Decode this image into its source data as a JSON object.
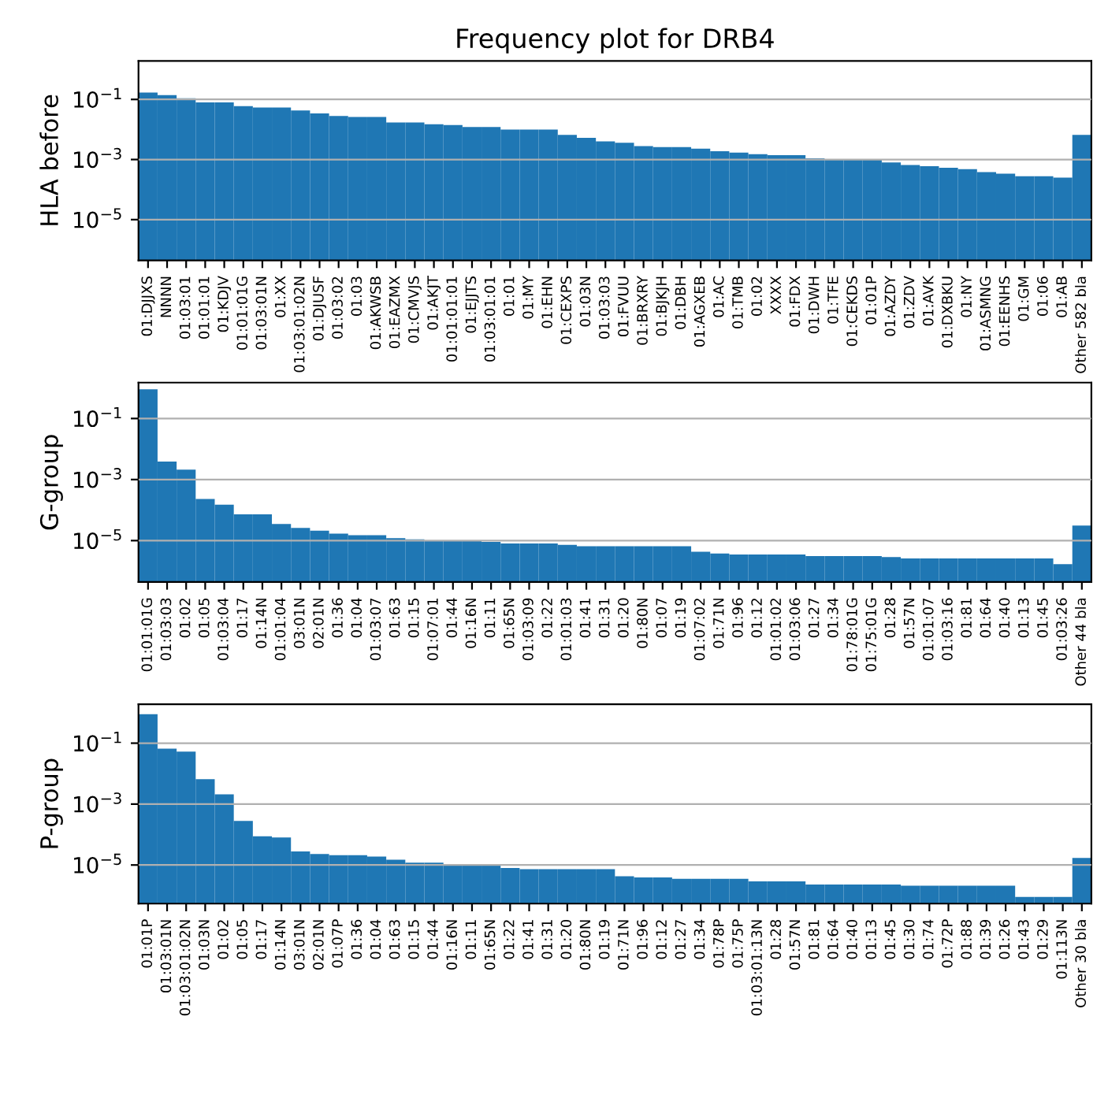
{
  "chart_data": [
    {
      "type": "bar",
      "title": "Frequency plot for DRB4",
      "ylabel": "HLA before",
      "log": "y",
      "grid": "y",
      "color": "#1f77b4",
      "categories": [
        "01:DJJXS",
        "NNNN",
        "01:03:01",
        "01:01:01",
        "01:KDJV",
        "01:01:01G",
        "01:03:01N",
        "01:XX",
        "01:03:01:02N",
        "01:DJUSF",
        "01:03:02",
        "01:03",
        "01:AKWSB",
        "01:EAZMX",
        "01:CMVJS",
        "01:AKJT",
        "01:01:01:01",
        "01:EJJTS",
        "01:03:01:01",
        "01:01",
        "01:MY",
        "01:EHN",
        "01:CEXPS",
        "01:03N",
        "01:03:03",
        "01:FVUU",
        "01:BRXRY",
        "01:BJKJH",
        "01:DBH",
        "01:AGXEB",
        "01:AC",
        "01:TMB",
        "01:02",
        "XXXX",
        "01:FDX",
        "01:DWH",
        "01:TFE",
        "01:CEKDS",
        "01:01P",
        "01:AZDY",
        "01:ZDV",
        "01:AVK",
        "01:DXBKU",
        "01:NY",
        "01:ASMNG",
        "01:EENHS",
        "01:GM",
        "01:06",
        "01:AB",
        "Other 582 bla"
      ],
      "values": [
        0.17,
        0.14,
        0.11,
        0.08,
        0.08,
        0.06,
        0.054,
        0.054,
        0.043,
        0.034,
        0.028,
        0.026,
        0.026,
        0.017,
        0.017,
        0.015,
        0.014,
        0.012,
        0.012,
        0.01,
        0.01,
        0.01,
        0.0066,
        0.0053,
        0.004,
        0.0036,
        0.0028,
        0.0026,
        0.0026,
        0.0023,
        0.0019,
        0.0017,
        0.0015,
        0.0014,
        0.0014,
        0.0011,
        0.001,
        0.001,
        0.001,
        0.0008,
        0.00066,
        0.0006,
        0.00053,
        0.00048,
        0.00038,
        0.00034,
        0.00028,
        0.00028,
        0.00025,
        0.0066
      ],
      "ylim": [
        4.4e-07,
        1.9
      ],
      "yticks": [
        {
          "value": 1e-05,
          "label": "10$^{−5}$"
        },
        {
          "value": 0.001,
          "label": "10$^{−3}$"
        },
        {
          "value": 0.1,
          "label": "10$^{−1}$"
        }
      ]
    },
    {
      "type": "bar",
      "ylabel": "G-group",
      "log": "y",
      "grid": "y",
      "color": "#1f77b4",
      "categories": [
        "01:01:01G",
        "01:03:03",
        "01:02",
        "01:05",
        "01:03:04",
        "01:17",
        "01:14N",
        "01:01:04",
        "03:01N",
        "02:01N",
        "01:36",
        "01:04",
        "01:03:07",
        "01:63",
        "01:15",
        "01:07:01",
        "01:44",
        "01:16N",
        "01:11",
        "01:65N",
        "01:03:09",
        "01:22",
        "01:01:03",
        "01:41",
        "01:31",
        "01:20",
        "01:80N",
        "01:07",
        "01:19",
        "01:07:02",
        "01:71N",
        "01:96",
        "01:12",
        "01:01:02",
        "01:03:06",
        "01:27",
        "01:34",
        "01:78:01G",
        "01:75:01G",
        "01:28",
        "01:57N",
        "01:01:07",
        "01:03:16",
        "01:81",
        "01:64",
        "01:40",
        "01:13",
        "01:45",
        "01:03:26",
        "Other 44 bla"
      ],
      "values": [
        0.9,
        0.0039,
        0.0021,
        0.00023,
        0.00015,
        7.3e-05,
        7.3e-05,
        3.5e-05,
        2.6e-05,
        2.1e-05,
        1.7e-05,
        1.5e-05,
        1.5e-05,
        1.2e-05,
        1.1e-05,
        1e-05,
        1e-05,
        1e-05,
        9e-06,
        8e-06,
        8e-06,
        8e-06,
        7.3e-06,
        6.5e-06,
        6.5e-06,
        6.5e-06,
        6.5e-06,
        6.5e-06,
        6.5e-06,
        4.3e-06,
        3.8e-06,
        3.5e-06,
        3.5e-06,
        3.5e-06,
        3.5e-06,
        3.1e-06,
        3.1e-06,
        3.1e-06,
        3.1e-06,
        2.9e-06,
        2.6e-06,
        2.6e-06,
        2.6e-06,
        2.6e-06,
        2.6e-06,
        2.6e-06,
        2.6e-06,
        2.6e-06,
        1.7e-06,
        3.1e-05
      ],
      "ylim": [
        4.4e-07,
        1.5
      ],
      "yticks": [
        {
          "value": 1e-05,
          "label": "10$^{−5}$"
        },
        {
          "value": 0.001,
          "label": "10$^{−3}$"
        },
        {
          "value": 0.1,
          "label": "10$^{−1}$"
        }
      ]
    },
    {
      "type": "bar",
      "ylabel": "P-group",
      "log": "y",
      "grid": "y",
      "color": "#1f77b4",
      "categories": [
        "01:01P",
        "01:03:01N",
        "01:03:01:02N",
        "01:03N",
        "01:02",
        "01:05",
        "01:17",
        "01:14N",
        "03:01N",
        "02:01N",
        "01:07P",
        "01:36",
        "01:04",
        "01:63",
        "01:15",
        "01:44",
        "01:16N",
        "01:11",
        "01:65N",
        "01:22",
        "01:41",
        "01:31",
        "01:20",
        "01:80N",
        "01:19",
        "01:71N",
        "01:96",
        "01:12",
        "01:27",
        "01:34",
        "01:78P",
        "01:75P",
        "01:03:01:13N",
        "01:28",
        "01:57N",
        "01:81",
        "01:64",
        "01:40",
        "01:13",
        "01:45",
        "01:30",
        "01:74",
        "01:72P",
        "01:88",
        "01:39",
        "01:26",
        "01:43",
        "01:29",
        "01:113N",
        "Other 30 bla"
      ],
      "values": [
        0.9,
        0.066,
        0.053,
        0.0066,
        0.0021,
        0.00028,
        8.8e-05,
        8e-05,
        2.8e-05,
        2.3e-05,
        2.1e-05,
        2.1e-05,
        1.9e-05,
        1.5e-05,
        1.2e-05,
        1.2e-05,
        1e-05,
        1e-05,
        1e-05,
        8e-06,
        7.3e-06,
        7.3e-06,
        7.3e-06,
        7.3e-06,
        7.3e-06,
        4.3e-06,
        3.9e-06,
        3.9e-06,
        3.5e-06,
        3.5e-06,
        3.5e-06,
        3.5e-06,
        2.9e-06,
        2.9e-06,
        2.9e-06,
        2.3e-06,
        2.3e-06,
        2.3e-06,
        2.3e-06,
        2.3e-06,
        2.1e-06,
        2.1e-06,
        2.1e-06,
        2.1e-06,
        2.1e-06,
        2.1e-06,
        9e-07,
        9e-07,
        9e-07,
        1.7e-05
      ],
      "ylim": [
        5.4e-07,
        1.9
      ],
      "yticks": [
        {
          "value": 1e-05,
          "label": "10$^{−5}$"
        },
        {
          "value": 0.001,
          "label": "10$^{−3}$"
        },
        {
          "value": 0.1,
          "label": "10$^{−1}$"
        }
      ]
    }
  ]
}
